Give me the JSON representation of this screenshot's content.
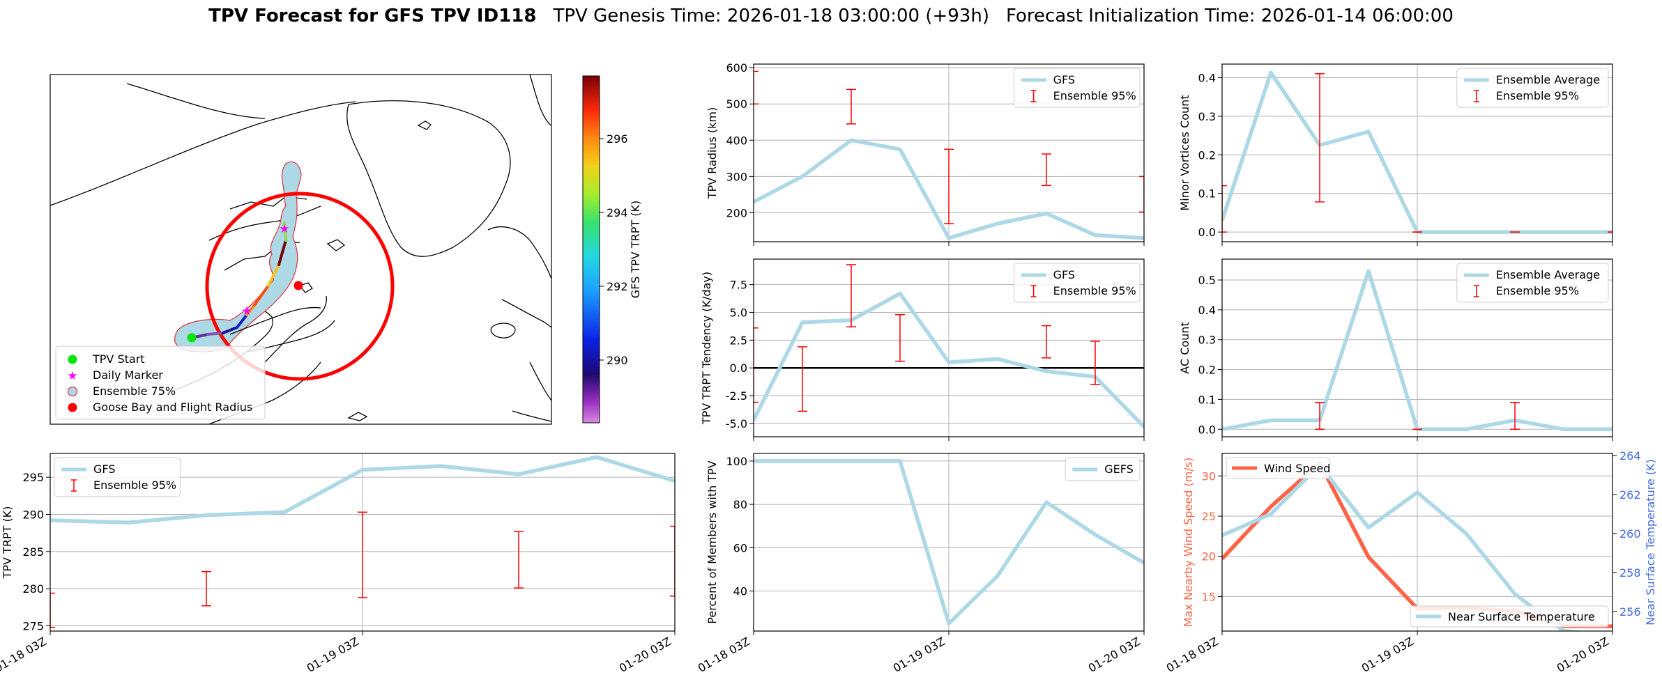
{
  "header": {
    "title_bold": "TPV Forecast for GFS TPV ID118",
    "genesis": "TPV Genesis Time: 2026-01-18 03:00:00 (+93h)",
    "init": "Forecast Initialization Time: 2026-01-14 06:00:00"
  },
  "colors": {
    "light_blue": "#add8e6",
    "error_red": "#ff0000",
    "wind": "#ff6347",
    "temp_axis": "#4169e1",
    "grid": "#b0b0b0"
  },
  "map": {
    "legend": [
      {
        "label": "TPV Start",
        "icon": "green-dot-icon"
      },
      {
        "label": "Daily Marker",
        "icon": "magenta-star-icon"
      },
      {
        "label": "Ensemble 75%",
        "icon": "blue-patch-icon"
      },
      {
        "label": "Goose Bay and Flight Radius",
        "icon": "red-dot-icon"
      }
    ],
    "colorbar": {
      "label": "GFS TPV TRPT (K)",
      "ticks": [
        290,
        292,
        294,
        296
      ],
      "range": [
        288.3,
        297.7
      ]
    },
    "track_trpt_k": [
      289.2,
      288.9,
      289.9,
      290.3,
      296.0,
      296.5,
      295.4,
      297.7,
      294.5
    ]
  },
  "chart_data": [
    {
      "id": "radius",
      "type": "line",
      "ylabel": "TPV Radius (km)",
      "x": [
        0,
        1,
        2,
        3,
        4,
        5,
        6,
        7,
        8
      ],
      "xlim": [
        0,
        8
      ],
      "ylim": [
        120,
        610
      ],
      "yticks": [
        200,
        300,
        400,
        500,
        600
      ],
      "xticks": [
        0,
        4,
        8
      ],
      "xticklabels": [],
      "series": [
        {
          "name": "GFS",
          "values": [
            230,
            300,
            400,
            375,
            130,
            170,
            198,
            138,
            130
          ]
        }
      ],
      "errorbars": {
        "name": "Ensemble 95%",
        "points": [
          {
            "x": 0,
            "lo": 500,
            "hi": 590
          },
          {
            "x": 2,
            "lo": 445,
            "hi": 540
          },
          {
            "x": 4,
            "lo": 170,
            "hi": 375
          },
          {
            "x": 6,
            "lo": 275,
            "hi": 362
          },
          {
            "x": 8,
            "lo": 202,
            "hi": 300
          }
        ]
      },
      "legend": [
        "GFS",
        "Ensemble 95%"
      ],
      "legend_loc": "upper right"
    },
    {
      "id": "minor",
      "type": "line",
      "ylabel": "Minor Vortices Count",
      "x": [
        0,
        1,
        2,
        3,
        4,
        5,
        6,
        7,
        8
      ],
      "xlim": [
        0,
        8
      ],
      "ylim": [
        -0.025,
        0.435
      ],
      "yticks": [
        0.0,
        0.1,
        0.2,
        0.3,
        0.4
      ],
      "xticks": [
        0,
        4,
        8
      ],
      "xticklabels": [],
      "series": [
        {
          "name": "Ensemble Average",
          "values": [
            0.03,
            0.413,
            0.225,
            0.26,
            0.0,
            0.0,
            0.0,
            0.0,
            0.0
          ]
        }
      ],
      "errorbars": {
        "name": "Ensemble 95%",
        "points": [
          {
            "x": 0,
            "lo": 0.0,
            "hi": 0.12
          },
          {
            "x": 2,
            "lo": 0.078,
            "hi": 0.41
          },
          {
            "x": 4,
            "lo": 0.0,
            "hi": 0.0
          },
          {
            "x": 6,
            "lo": 0.0,
            "hi": 0.0
          },
          {
            "x": 8,
            "lo": 0.0,
            "hi": 0.0
          }
        ]
      },
      "legend": [
        "Ensemble Average",
        "Ensemble 95%"
      ],
      "legend_loc": "upper right"
    },
    {
      "id": "tendency",
      "type": "line",
      "ylabel": "TPV TRPT Tendency (K/day)",
      "x": [
        0,
        1,
        2,
        3,
        4,
        5,
        6,
        7,
        8
      ],
      "xlim": [
        0,
        8
      ],
      "ylim": [
        -6.2,
        9.8
      ],
      "yticks": [
        -5.0,
        -2.5,
        0.0,
        2.5,
        5.0,
        7.5
      ],
      "xticks": [
        0,
        4,
        8
      ],
      "xticklabels": [],
      "zero_line": true,
      "series": [
        {
          "name": "GFS",
          "values": [
            -4.7,
            4.1,
            4.3,
            6.7,
            0.5,
            0.8,
            -0.3,
            -0.8,
            -5.3
          ]
        }
      ],
      "errorbars": {
        "name": "Ensemble 95%",
        "points": [
          {
            "x": 0,
            "lo": -3.1,
            "hi": 3.6
          },
          {
            "x": 1,
            "lo": -3.9,
            "hi": 1.9
          },
          {
            "x": 2,
            "lo": 3.7,
            "hi": 9.3
          },
          {
            "x": 3,
            "lo": 0.6,
            "hi": 4.8
          },
          {
            "x": 6,
            "lo": 0.9,
            "hi": 3.8
          },
          {
            "x": 7,
            "lo": -1.5,
            "hi": 2.4
          }
        ]
      },
      "legend": [
        "GFS",
        "Ensemble 95%"
      ],
      "legend_loc": "upper right"
    },
    {
      "id": "ac",
      "type": "line",
      "ylabel": "AC Count",
      "x": [
        0,
        1,
        2,
        3,
        4,
        5,
        6,
        7,
        8
      ],
      "xlim": [
        0,
        8
      ],
      "ylim": [
        -0.025,
        0.57
      ],
      "yticks": [
        0.0,
        0.1,
        0.2,
        0.3,
        0.4,
        0.5
      ],
      "xticks": [
        0,
        4,
        8
      ],
      "xticklabels": [],
      "series": [
        {
          "name": "Ensemble Average",
          "values": [
            0.0,
            0.03,
            0.03,
            0.53,
            0.0,
            0.0,
            0.03,
            0.0,
            0.0
          ]
        }
      ],
      "errorbars": {
        "name": "Ensemble 95%",
        "points": [
          {
            "x": 2,
            "lo": 0.0,
            "hi": 0.09
          },
          {
            "x": 4,
            "lo": 0.0,
            "hi": 0.0
          },
          {
            "x": 6,
            "lo": 0.0,
            "hi": 0.09
          }
        ]
      },
      "legend": [
        "Ensemble Average",
        "Ensemble 95%"
      ],
      "legend_loc": "upper right"
    },
    {
      "id": "trpt",
      "type": "line",
      "ylabel": "TPV TRPT (K)",
      "x": [
        0,
        1,
        2,
        3,
        4,
        5,
        6,
        7,
        8
      ],
      "xlim": [
        0,
        8
      ],
      "ylim": [
        274.3,
        298.2
      ],
      "yticks": [
        275,
        280,
        285,
        290,
        295
      ],
      "xticks": [
        0,
        4,
        8
      ],
      "xticklabels": [
        "01-18 03Z",
        "01-19 03Z",
        "01-20 03Z"
      ],
      "series": [
        {
          "name": "GFS",
          "values": [
            289.2,
            288.9,
            289.9,
            290.3,
            296.0,
            296.5,
            295.4,
            297.7,
            294.5
          ]
        }
      ],
      "errorbars": {
        "name": "Ensemble 95%",
        "points": [
          {
            "x": 0,
            "lo": 274.8,
            "hi": 279.4
          },
          {
            "x": 2,
            "lo": 277.7,
            "hi": 282.3
          },
          {
            "x": 4,
            "lo": 278.8,
            "hi": 290.3
          },
          {
            "x": 6,
            "lo": 280.1,
            "hi": 287.7
          },
          {
            "x": 8,
            "lo": 279.0,
            "hi": 288.4
          }
        ]
      },
      "legend": [
        "GFS",
        "Ensemble 95%"
      ],
      "legend_loc": "upper left"
    },
    {
      "id": "members",
      "type": "line",
      "ylabel": "Percent of Members with TPV",
      "x": [
        0,
        1,
        2,
        3,
        4,
        5,
        6,
        7,
        8
      ],
      "xlim": [
        0,
        8
      ],
      "ylim": [
        21.5,
        103.5
      ],
      "yticks": [
        40,
        60,
        80,
        100
      ],
      "xticks": [
        0,
        4,
        8
      ],
      "xticklabels": [
        "01-18 03Z",
        "01-19 03Z",
        "01-20 03Z"
      ],
      "series": [
        {
          "name": "GEFS",
          "values": [
            100,
            100,
            100,
            100,
            25,
            47,
            81,
            66,
            53
          ]
        }
      ],
      "legend": [
        "GEFS"
      ],
      "legend_loc": "upper right"
    },
    {
      "id": "wind_temp",
      "type": "line",
      "ylabel": "Max Nearby Wind Speed (m/s)",
      "ylabel_right": "Near Surface Temperature (K)",
      "x": [
        0,
        1,
        2,
        3,
        4,
        5,
        6,
        7,
        8
      ],
      "xlim": [
        0,
        8
      ],
      "ylim": [
        10.7,
        32.8
      ],
      "yticks": [
        15,
        20,
        25,
        30
      ],
      "ylim_right": [
        255.0,
        264.1
      ],
      "yticks_right": [
        256,
        258,
        260,
        262,
        264
      ],
      "xticks": [
        0,
        4,
        8
      ],
      "xticklabels": [
        "01-18 03Z",
        "01-19 03Z",
        "01-20 03Z"
      ],
      "series": [
        {
          "name": "Wind Speed",
          "axis": "left",
          "values": [
            19.7,
            26.2,
            31.6,
            19.9,
            13.5,
            13.6,
            13.2,
            11.3,
            11.3
          ]
        },
        {
          "name": "Near Surface Temperature",
          "axis": "right",
          "values": [
            259.9,
            261.0,
            263.5,
            260.3,
            262.1,
            260.0,
            256.9,
            255.0,
            254.8
          ]
        }
      ],
      "legend": [
        "Wind Speed",
        "Near Surface Temperature"
      ]
    }
  ]
}
